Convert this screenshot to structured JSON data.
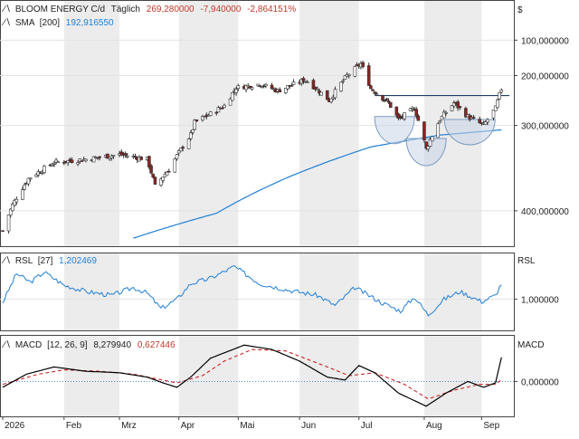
{
  "colors": {
    "up": "#ffffff",
    "down": "#8b2323",
    "wick": "#333333",
    "sma": "#1e7fd6",
    "rsl": "#1e7fd6",
    "macd": "#000000",
    "signal": "#cc2222",
    "neg": "#cc2222",
    "shade": "#ececec",
    "pattern_fill": "#c9d6e8",
    "pattern_stroke": "#7b9bbf"
  },
  "price_panel": {
    "instrument": "BLOOM ENERGY C/d",
    "period": "Täglich",
    "last": "269,280000",
    "change": "-7,940000",
    "change_pct": "-2,864151%",
    "sma_label": "SMA",
    "sma_param": "[200]",
    "sma_value": "192,916550",
    "currency": "$",
    "y_ticks": [
      "400,000000",
      "300,000000",
      "200,000000",
      "100,000000"
    ]
  },
  "rsl_panel": {
    "label": "RSL",
    "param": "[27]",
    "value": "1,202469",
    "axis_title": "RSL",
    "y_ticks": [
      "1,000000"
    ]
  },
  "macd_panel": {
    "label": "MACD",
    "param": "[12, 26, 9]",
    "macd_value": "8,279940",
    "signal_value": "0,627446",
    "axis_title": "MACD",
    "y_ticks": [
      "0,000000"
    ]
  },
  "x_axis": {
    "labels": [
      "2026",
      "Feb",
      "Mrz",
      "Apr",
      "Mai",
      "Jun",
      "Jul",
      "Aug",
      "Sep"
    ]
  },
  "chart_data": [
    {
      "type": "candlestick",
      "y_scale": "log",
      "ylim": [
        75,
        500
      ],
      "y_ticks": [
        100,
        200,
        300,
        400
      ],
      "x_labels": [
        "2026",
        "Feb",
        "Mrz",
        "Apr",
        "Mai",
        "Jun",
        "Jul",
        "Aug",
        "Sep"
      ],
      "price_anchors": [
        {
          "date": "2026-01-02",
          "close": 85
        },
        {
          "date": "2026-01-07",
          "close": 105
        },
        {
          "date": "2026-01-15",
          "close": 130
        },
        {
          "date": "2026-01-28",
          "close": 148
        },
        {
          "date": "2026-02-13",
          "close": 152
        },
        {
          "date": "2026-03-02",
          "close": 158
        },
        {
          "date": "2026-03-16",
          "close": 152
        },
        {
          "date": "2026-03-20",
          "close": 122
        },
        {
          "date": "2026-03-27",
          "close": 140
        },
        {
          "date": "2026-04-07",
          "close": 185
        },
        {
          "date": "2026-04-09",
          "close": 205
        },
        {
          "date": "2026-04-17",
          "close": 220
        },
        {
          "date": "2026-04-24",
          "close": 235
        },
        {
          "date": "2026-04-30",
          "close": 272
        },
        {
          "date": "2026-05-12",
          "close": 280
        },
        {
          "date": "2026-05-21",
          "close": 265
        },
        {
          "date": "2026-06-04",
          "close": 290
        },
        {
          "date": "2026-06-16",
          "close": 245
        },
        {
          "date": "2026-06-25",
          "close": 300
        },
        {
          "date": "2026-07-02",
          "close": 330
        },
        {
          "date": "2026-07-07",
          "close": 270
        },
        {
          "date": "2026-07-16",
          "close": 240
        },
        {
          "date": "2026-07-21",
          "close": 210
        },
        {
          "date": "2026-07-29",
          "close": 230
        },
        {
          "date": "2026-08-04",
          "close": 165
        },
        {
          "date": "2026-08-11",
          "close": 210
        },
        {
          "date": "2026-08-18",
          "close": 240
        },
        {
          "date": "2026-08-25",
          "close": 215
        },
        {
          "date": "2026-09-02",
          "close": 200
        },
        {
          "date": "2026-09-08",
          "close": 230
        },
        {
          "date": "2026-09-11",
          "close": 269.28
        }
      ],
      "sma_200": [
        {
          "date": "2026-03-09",
          "value": 80
        },
        {
          "date": "2026-04-20",
          "value": 98
        },
        {
          "date": "2026-05-27",
          "value": 132
        },
        {
          "date": "2026-07-07",
          "value": 168
        },
        {
          "date": "2026-08-11",
          "value": 185
        },
        {
          "date": "2026-09-11",
          "value": 193
        }
      ],
      "neckline": [
        {
          "date": "2026-07-09",
          "value": 255
        },
        {
          "date": "2026-09-15",
          "value": 255
        }
      ]
    },
    {
      "type": "line",
      "title": "RSL [27]",
      "ylim": [
        0.6,
        1.6
      ],
      "y_ticks": [
        1.0
      ],
      "series": [
        {
          "name": "RSL",
          "points": [
            {
              "date": "2026-01-02",
              "value": 0.96
            },
            {
              "date": "2026-01-09",
              "value": 1.33
            },
            {
              "date": "2026-01-16",
              "value": 1.22
            },
            {
              "date": "2026-01-23",
              "value": 1.35
            },
            {
              "date": "2026-02-02",
              "value": 1.18
            },
            {
              "date": "2026-02-13",
              "value": 1.1
            },
            {
              "date": "2026-02-26",
              "value": 1.05
            },
            {
              "date": "2026-03-09",
              "value": 1.15
            },
            {
              "date": "2026-03-16",
              "value": 1.08
            },
            {
              "date": "2026-03-23",
              "value": 0.88
            },
            {
              "date": "2026-03-31",
              "value": 1.0
            },
            {
              "date": "2026-04-07",
              "value": 1.2
            },
            {
              "date": "2026-04-17",
              "value": 1.27
            },
            {
              "date": "2026-04-29",
              "value": 1.42
            },
            {
              "date": "2026-05-12",
              "value": 1.2
            },
            {
              "date": "2026-05-26",
              "value": 1.12
            },
            {
              "date": "2026-06-10",
              "value": 1.05
            },
            {
              "date": "2026-06-19",
              "value": 0.92
            },
            {
              "date": "2026-06-29",
              "value": 1.15
            },
            {
              "date": "2026-07-13",
              "value": 0.95
            },
            {
              "date": "2026-07-22",
              "value": 0.85
            },
            {
              "date": "2026-07-29",
              "value": 1.03
            },
            {
              "date": "2026-08-05",
              "value": 0.8
            },
            {
              "date": "2026-08-13",
              "value": 1.0
            },
            {
              "date": "2026-08-21",
              "value": 1.1
            },
            {
              "date": "2026-09-01",
              "value": 0.97
            },
            {
              "date": "2026-09-08",
              "value": 1.05
            },
            {
              "date": "2026-09-11",
              "value": 1.202
            }
          ]
        }
      ]
    },
    {
      "type": "line",
      "title": "MACD [12, 26, 9]",
      "ylim": [
        -12,
        16
      ],
      "y_ticks": [
        0
      ],
      "series": [
        {
          "name": "MACD",
          "points": [
            {
              "date": "2026-01-02",
              "value": -2.0
            },
            {
              "date": "2026-01-14",
              "value": 2.5
            },
            {
              "date": "2026-01-28",
              "value": 5.0
            },
            {
              "date": "2026-02-13",
              "value": 3.5
            },
            {
              "date": "2026-03-02",
              "value": 3.0
            },
            {
              "date": "2026-03-16",
              "value": 1.5
            },
            {
              "date": "2026-03-24",
              "value": -0.5
            },
            {
              "date": "2026-03-31",
              "value": -2.0
            },
            {
              "date": "2026-04-07",
              "value": 1.5
            },
            {
              "date": "2026-04-17",
              "value": 8.0
            },
            {
              "date": "2026-05-04",
              "value": 12.5
            },
            {
              "date": "2026-05-18",
              "value": 11.0
            },
            {
              "date": "2026-06-01",
              "value": 7.0
            },
            {
              "date": "2026-06-15",
              "value": 1.5
            },
            {
              "date": "2026-06-24",
              "value": 0.5
            },
            {
              "date": "2026-07-01",
              "value": 5.5
            },
            {
              "date": "2026-07-09",
              "value": 3.0
            },
            {
              "date": "2026-07-21",
              "value": -4.0
            },
            {
              "date": "2026-08-04",
              "value": -8.5
            },
            {
              "date": "2026-08-14",
              "value": -4.0
            },
            {
              "date": "2026-08-25",
              "value": 0.0
            },
            {
              "date": "2026-09-02",
              "value": -2.0
            },
            {
              "date": "2026-09-08",
              "value": -0.5
            },
            {
              "date": "2026-09-11",
              "value": 8.28
            }
          ]
        },
        {
          "name": "Signal",
          "points": [
            {
              "date": "2026-01-02",
              "value": -1.0
            },
            {
              "date": "2026-01-20",
              "value": 2.5
            },
            {
              "date": "2026-02-02",
              "value": 4.0
            },
            {
              "date": "2026-02-20",
              "value": 3.5
            },
            {
              "date": "2026-03-09",
              "value": 2.5
            },
            {
              "date": "2026-03-31",
              "value": -0.5
            },
            {
              "date": "2026-04-13",
              "value": 2.0
            },
            {
              "date": "2026-04-24",
              "value": 7.0
            },
            {
              "date": "2026-05-08",
              "value": 11.0
            },
            {
              "date": "2026-05-25",
              "value": 10.5
            },
            {
              "date": "2026-06-15",
              "value": 5.0
            },
            {
              "date": "2026-06-26",
              "value": 2.0
            },
            {
              "date": "2026-07-09",
              "value": 3.0
            },
            {
              "date": "2026-07-24",
              "value": -1.0
            },
            {
              "date": "2026-08-05",
              "value": -6.0
            },
            {
              "date": "2026-08-18",
              "value": -3.0
            },
            {
              "date": "2026-08-31",
              "value": -1.0
            },
            {
              "date": "2026-09-08",
              "value": -1.0
            },
            {
              "date": "2026-09-11",
              "value": 0.63
            }
          ]
        }
      ]
    }
  ]
}
